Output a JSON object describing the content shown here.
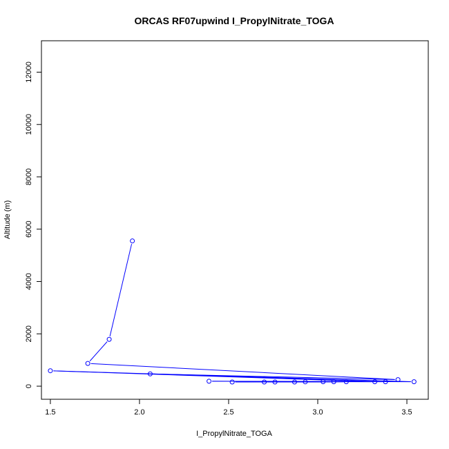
{
  "chart_data": {
    "type": "line",
    "title": "ORCAS RF07upwind I_PropylNitrate_TOGA",
    "xlabel": "I_PropylNitrate_TOGA",
    "ylabel": "Altitude (m)",
    "xlim": [
      1.45,
      3.62
    ],
    "ylim": [
      -500,
      13200
    ],
    "x_ticks": [
      1.5,
      2.0,
      2.5,
      3.0,
      3.5
    ],
    "x_tick_labels": [
      "1.5",
      "2.0",
      "2.5",
      "3.0",
      "3.5"
    ],
    "y_ticks": [
      0,
      2000,
      4000,
      6000,
      8000,
      10000,
      12000
    ],
    "y_tick_labels": [
      "0",
      "2000",
      "4000",
      "6000",
      "8000",
      "10000",
      "12000"
    ],
    "color": "#0000ff",
    "series": [
      {
        "x": [
          1.96,
          1.83,
          1.71,
          3.45,
          2.06,
          3.38,
          2.39,
          3.54,
          1.5,
          3.32,
          2.52,
          3.16,
          2.7,
          3.09,
          2.76,
          3.03,
          2.87,
          2.93
        ],
        "y": [
          5550,
          1790,
          870,
          250,
          470,
          170,
          190,
          170,
          590,
          170,
          160,
          170,
          160,
          170,
          160,
          170,
          160,
          165
        ]
      }
    ]
  }
}
